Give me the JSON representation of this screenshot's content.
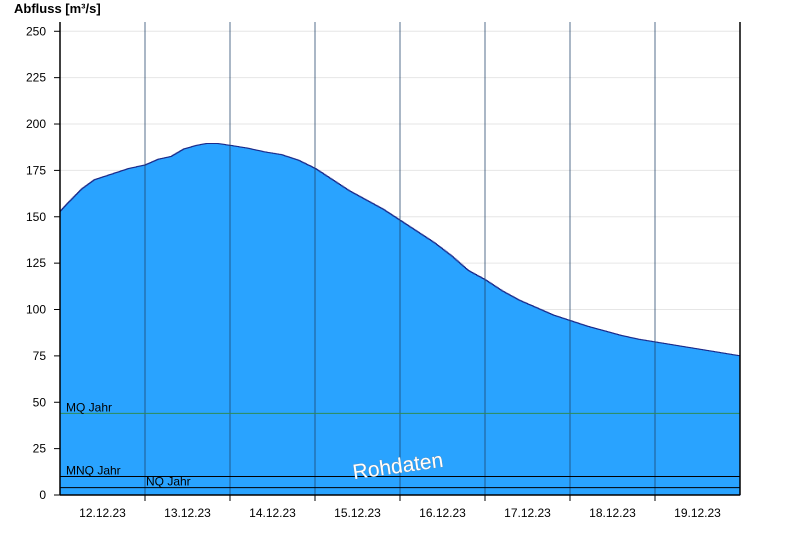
{
  "chart_data": {
    "type": "area",
    "ylabel": "Abfluss [m³/s]",
    "xlabel": "",
    "title": "",
    "ylim": [
      0,
      255
    ],
    "yticks": [
      0,
      25,
      50,
      75,
      100,
      125,
      150,
      175,
      200,
      225,
      250
    ],
    "xlim": [
      0,
      8
    ],
    "x_day_boundaries": [
      1,
      2,
      3,
      4,
      5,
      6,
      7
    ],
    "xtick_labels": [
      "12.12.23",
      "13.12.23",
      "14.12.23",
      "15.12.23",
      "16.12.23",
      "17.12.23",
      "18.12.23",
      "19.12.23"
    ],
    "series": [
      {
        "x": [
          0,
          0.1,
          0.25,
          0.4,
          0.6,
          0.8,
          1.0,
          1.15,
          1.3,
          1.45,
          1.6,
          1.72,
          1.85,
          2.0,
          2.2,
          2.4,
          2.6,
          2.8,
          3.0,
          3.2,
          3.4,
          3.6,
          3.8,
          4.0,
          4.2,
          4.4,
          4.6,
          4.8,
          5.0,
          5.2,
          5.4,
          5.6,
          5.8,
          6.0,
          6.2,
          6.4,
          6.6,
          6.8,
          7.0,
          7.2,
          7.4,
          7.6,
          7.8,
          8.0
        ],
        "y": [
          153,
          158,
          165,
          170,
          173,
          176,
          178,
          181,
          182.5,
          186.5,
          188.5,
          189.5,
          189.5,
          188.5,
          187,
          185,
          183.5,
          180.5,
          176,
          170,
          164,
          159,
          154,
          148,
          142,
          136,
          129,
          121,
          116,
          110,
          105,
          101,
          97,
          94,
          91,
          88.5,
          86,
          84,
          82.5,
          81,
          79.5,
          78,
          76.5,
          75
        ]
      }
    ],
    "reference_lines": [
      {
        "name": "MQ Jahr",
        "value": 44,
        "color": "#2e8b57"
      },
      {
        "name": "MNQ Jahr",
        "value": 10,
        "color": "#000000"
      },
      {
        "name": "NQ Jahr",
        "value": 4,
        "color": "#000000"
      }
    ],
    "fill_color": "#29a3ff",
    "line_color": "#1a2a8a",
    "grid": true,
    "watermark": "Rohdaten"
  }
}
